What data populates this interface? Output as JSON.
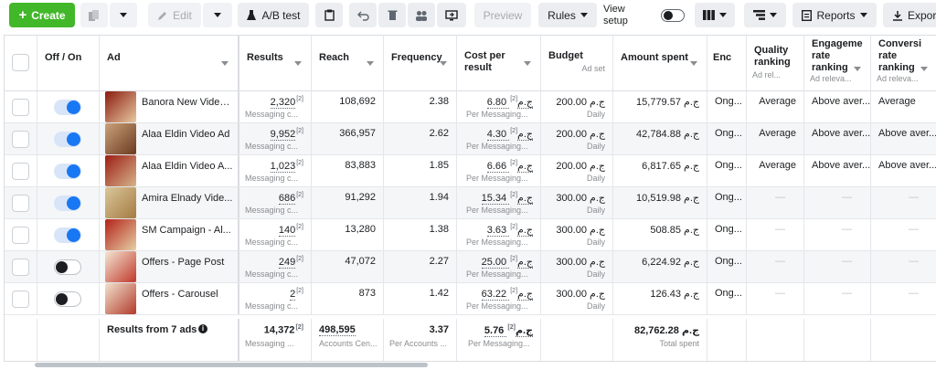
{
  "toolbar": {
    "create": "Create",
    "edit": "Edit",
    "abtest": "A/B test",
    "preview": "Preview",
    "rules": "Rules",
    "view_setup": "View setup",
    "reports": "Reports",
    "export": "Export"
  },
  "headers": {
    "off_on": "Off / On",
    "ad": "Ad",
    "results": "Results",
    "reach": "Reach",
    "frequency": "Frequency",
    "cost_per_result": "Cost per result",
    "budget": "Budget",
    "budget_sub": "Ad set",
    "amount_spent": "Amount spent",
    "ends": "Enc",
    "quality": "Quality ranking",
    "quality_sub": "Ad rel...",
    "engagement": "Engageme rate ranking",
    "engagement_sub": "Ad releva...",
    "conversion": "Conversi rate ranking",
    "conversion_sub": "Ad releva..."
  },
  "rows": [
    {
      "on": true,
      "name": "Banora New Video...",
      "results": "2,320",
      "results_sub": "Messaging c...",
      "reach": "108,692",
      "frequency": "2.38",
      "cpr": "6.80 ج.م",
      "cpr_sub": "Per Messaging...",
      "budget": "200.00 ج.م",
      "budget_sub": "Daily",
      "spent": "15,779.57 ج.م",
      "ends": "Ong...",
      "quality": "Average",
      "engagement": "Above aver...",
      "conversion": "Average"
    },
    {
      "on": true,
      "name": "Alaa Eldin Video Ad",
      "results": "9,952",
      "results_sub": "Messaging c...",
      "reach": "366,957",
      "frequency": "2.62",
      "cpr": "4.30 ج.م",
      "cpr_sub": "Per Messaging...",
      "budget": "200.00 ج.م",
      "budget_sub": "Daily",
      "spent": "42,784.88 ج.م",
      "ends": "Ong...",
      "quality": "Average",
      "engagement": "Above aver...",
      "conversion": "Above aver..."
    },
    {
      "on": true,
      "name": "Alaa Eldin Video A...",
      "results": "1,023",
      "results_sub": "Messaging c...",
      "reach": "83,883",
      "frequency": "1.85",
      "cpr": "6.66 ج.م",
      "cpr_sub": "Per Messaging...",
      "budget": "200.00 ج.م",
      "budget_sub": "Daily",
      "spent": "6,817.65 ج.م",
      "ends": "Ong...",
      "quality": "Average",
      "engagement": "Above aver...",
      "conversion": "Above aver..."
    },
    {
      "on": true,
      "name": "Amira Elnady Vide...",
      "results": "686",
      "results_sub": "Messaging c...",
      "reach": "91,292",
      "frequency": "1.94",
      "cpr": "15.34 ج.م",
      "cpr_sub": "Per Messaging...",
      "budget": "300.00 ج.م",
      "budget_sub": "Daily",
      "spent": "10,519.98 ج.م",
      "ends": "Ong...",
      "quality": "—",
      "engagement": "—",
      "conversion": "—"
    },
    {
      "on": true,
      "name": "SM Campaign - Al...",
      "results": "140",
      "results_sub": "Messaging c...",
      "reach": "13,280",
      "frequency": "1.38",
      "cpr": "3.63 ج.م",
      "cpr_sub": "Per Messaging...",
      "budget": "300.00 ج.م",
      "budget_sub": "Daily",
      "spent": "508.85 ج.م",
      "ends": "Ong...",
      "quality": "—",
      "engagement": "—",
      "conversion": "—"
    },
    {
      "on": false,
      "name": "Offers - Page Post",
      "results": "249",
      "results_sub": "Messaging c...",
      "reach": "47,072",
      "frequency": "2.27",
      "cpr": "25.00 ج.م",
      "cpr_sub": "Per Messaging...",
      "budget": "300.00 ج.م",
      "budget_sub": "Daily",
      "spent": "6,224.92 ج.م",
      "ends": "Ong...",
      "quality": "—",
      "engagement": "—",
      "conversion": "—"
    },
    {
      "on": false,
      "name": "Offers - Carousel",
      "results": "2",
      "results_sub": "Messaging c...",
      "reach": "873",
      "frequency": "1.42",
      "cpr": "63.22 ج.م",
      "cpr_sub": "Per Messaging...",
      "budget": "300.00 ج.م",
      "budget_sub": "Daily",
      "spent": "126.43 ج.م",
      "ends": "Ong...",
      "quality": "—",
      "engagement": "—",
      "conversion": "—"
    }
  ],
  "summary": {
    "label": "Results from 7 ads",
    "results": "14,372",
    "results_sub": "Messaging ...",
    "reach": "498,595",
    "reach_sub": "Accounts Cen...",
    "frequency": "3.37",
    "frequency_sub": "Per Accounts ...",
    "cpr": "5.76 ج.م",
    "cpr_sub": "Per Messaging...",
    "spent": "82,762.28 ج.م",
    "spent_sub": "Total spent"
  },
  "sup": "[2]",
  "colors": {
    "accent": "#1877f2",
    "create": "#42b72a"
  }
}
